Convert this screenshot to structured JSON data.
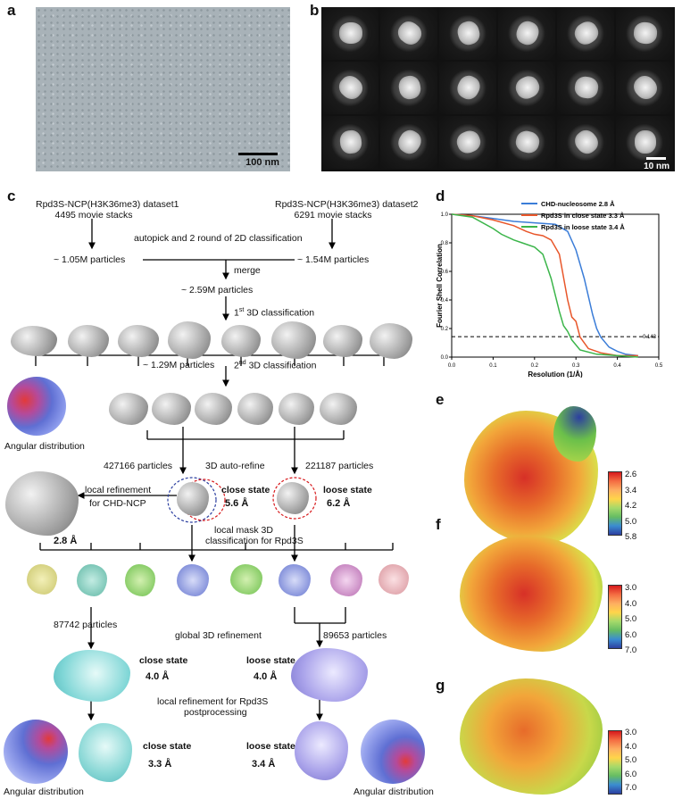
{
  "panels": {
    "a": "a",
    "b": "b",
    "c": "c",
    "d": "d",
    "e": "e",
    "f": "f",
    "g": "g"
  },
  "panel_a": {
    "scale_bar": "100 nm"
  },
  "panel_b": {
    "scale_bar": "10 nm"
  },
  "workflow": {
    "dataset1_title": "Rpd3S-NCP(H3K36me3) dataset1",
    "dataset1_stacks": "4495 movie stacks",
    "dataset2_title": "Rpd3S-NCP(H3K36me3) dataset2",
    "dataset2_stacks": "6291 movie stacks",
    "autopick": "autopick and 2 round of 2D classification",
    "particles1": "~ 1.05M particles",
    "particles2": "~ 1.54M particles",
    "merge": "merge",
    "merged": "~ 2.59M particles",
    "class3d_1_sup": "st",
    "class3d_1": "3D classification",
    "class3d_1_num": "1",
    "particles3": "~ 1.29M particles",
    "class3d_2_num": "2",
    "class3d_2_sup": "nd",
    "class3d_2": "3D classification",
    "angular_dist": "Angular distribution",
    "p427": "427166 particles",
    "autorefine": "3D auto-refine",
    "p221": "221187 particles",
    "local_ref_chd_1": "local refinement",
    "local_ref_chd_2": "for CHD-NCP",
    "close_state": "close state",
    "close_res": "5.6 Å",
    "loose_state": "loose state",
    "loose_res": "6.2 Å",
    "chd_res": "2.8 Å",
    "local_mask_1": "local mask 3D",
    "local_mask_2": "classification for Rpd3S",
    "p87742": "87742 particles",
    "global_ref": "global 3D refinement",
    "p89653": "89653 particles",
    "close_state2": "close state",
    "close_res2": "4.0 Å",
    "loose_state2": "loose state",
    "loose_res2": "4.0 Å",
    "local_ref_rpd3s": "local refinement for Rpd3S",
    "postprocessing": "postprocessing",
    "close_state3": "close state",
    "close_res3": "3.3 Å",
    "loose_state3": "loose state",
    "loose_res3": "3.4 Å",
    "angular_dist2": "Angular distribution",
    "angular_dist3": "Angular distribution"
  },
  "colorbars": {
    "e": [
      "2.6",
      "3.4",
      "4.2",
      "5.0",
      "5.8"
    ],
    "f": [
      "3.0",
      "4.0",
      "5.0",
      "6.0",
      "7.0"
    ],
    "g": [
      "3.0",
      "4.0",
      "5.0",
      "6.0",
      "7.0"
    ]
  },
  "chart_data": {
    "type": "line",
    "xlabel": "Resolution (1/Å)",
    "ylabel": "Fourier Shell Correlation",
    "xlim": [
      0,
      0.5
    ],
    "ylim": [
      0,
      1.0
    ],
    "xticks": [
      "0.0",
      "0.1",
      "0.2",
      "0.3",
      "0.4",
      "0.5"
    ],
    "yticks": [
      "0.0",
      "0.2",
      "0.4",
      "0.6",
      "0.8",
      "1.0"
    ],
    "threshold": 0.143,
    "threshold_label": "0.143",
    "legend_position": "top-right",
    "series": [
      {
        "name": "CHD-nucleosome 2.8 Å",
        "color": "#3b7dd8",
        "x": [
          0,
          0.05,
          0.1,
          0.15,
          0.2,
          0.25,
          0.28,
          0.3,
          0.32,
          0.34,
          0.35,
          0.36,
          0.38,
          0.4,
          0.42,
          0.45
        ],
        "y": [
          1.0,
          0.99,
          0.97,
          0.95,
          0.94,
          0.93,
          0.88,
          0.75,
          0.55,
          0.3,
          0.2,
          0.14,
          0.07,
          0.04,
          0.02,
          0.01
        ]
      },
      {
        "name": "Rpd3S in close state 3.3 Å",
        "color": "#e8562a",
        "x": [
          0,
          0.05,
          0.1,
          0.15,
          0.18,
          0.2,
          0.22,
          0.24,
          0.26,
          0.28,
          0.29,
          0.3,
          0.31,
          0.33,
          0.36,
          0.4,
          0.45
        ],
        "y": [
          1.0,
          0.99,
          0.96,
          0.92,
          0.88,
          0.86,
          0.85,
          0.82,
          0.72,
          0.4,
          0.28,
          0.25,
          0.14,
          0.06,
          0.03,
          0.01,
          0.01
        ]
      },
      {
        "name": "Rpd3S in loose state 3.4 Å",
        "color": "#3bb54a",
        "x": [
          0,
          0.05,
          0.1,
          0.12,
          0.15,
          0.17,
          0.2,
          0.22,
          0.24,
          0.26,
          0.27,
          0.28,
          0.29,
          0.31,
          0.35,
          0.4,
          0.45
        ],
        "y": [
          1.0,
          0.98,
          0.9,
          0.86,
          0.82,
          0.8,
          0.77,
          0.72,
          0.55,
          0.32,
          0.22,
          0.18,
          0.12,
          0.05,
          0.02,
          0.01,
          0.0
        ]
      }
    ]
  }
}
